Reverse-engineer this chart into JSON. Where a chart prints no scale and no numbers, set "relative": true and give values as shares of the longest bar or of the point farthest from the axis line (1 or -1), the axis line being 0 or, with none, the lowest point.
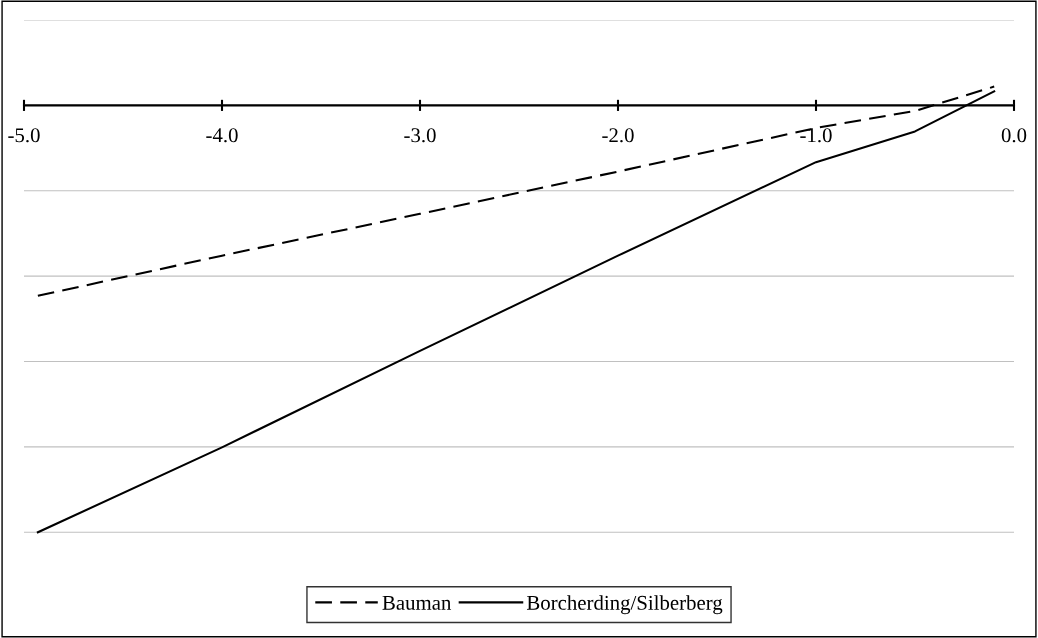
{
  "chart_data": {
    "type": "line",
    "relative": true,
    "xlim": [
      -5.0,
      0.0
    ],
    "xticks": [
      {
        "value": -5.0,
        "label": "-5.0"
      },
      {
        "value": -4.0,
        "label": "-4.0"
      },
      {
        "value": -3.0,
        "label": "-3.0"
      },
      {
        "value": -2.0,
        "label": "-2.0"
      },
      {
        "value": -1.0,
        "label": "-1.0"
      },
      {
        "value": 0.0,
        "label": "0.0"
      }
    ],
    "grid": "y",
    "legend": "bottom",
    "marker": "none",
    "series": [
      {
        "name": "Bauman",
        "color": "#000000",
        "line_style": "dashed",
        "x": [
          -4.93,
          -4.0,
          -3.0,
          -2.0,
          -1.0,
          -0.5,
          -0.1
        ],
        "values": [
          -0.446,
          -0.352,
          -0.254,
          -0.155,
          -0.053,
          -0.013,
          0.044
        ]
      },
      {
        "name": "Borcherding/Silberberg",
        "color": "#000000",
        "line_style": "solid",
        "x": [
          -4.93,
          -4.0,
          -3.0,
          -2.0,
          -1.0,
          -0.5,
          -0.1
        ],
        "values": [
          -1.0,
          -0.801,
          -0.575,
          -0.352,
          -0.133,
          -0.061,
          0.033
        ]
      }
    ]
  }
}
